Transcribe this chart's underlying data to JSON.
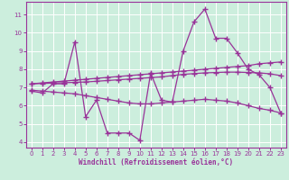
{
  "xlabel": "Windchill (Refroidissement éolien,°C)",
  "background_color": "#cceedd",
  "line_color": "#993399",
  "xlim": [
    -0.5,
    23.5
  ],
  "ylim": [
    3.7,
    11.7
  ],
  "yticks": [
    4,
    5,
    6,
    7,
    8,
    9,
    10,
    11
  ],
  "xticks": [
    0,
    1,
    2,
    3,
    4,
    5,
    6,
    7,
    8,
    9,
    10,
    11,
    12,
    13,
    14,
    15,
    16,
    17,
    18,
    19,
    20,
    21,
    22,
    23
  ],
  "x": [
    0,
    1,
    2,
    3,
    4,
    5,
    6,
    7,
    8,
    9,
    10,
    11,
    12,
    13,
    14,
    15,
    16,
    17,
    18,
    19,
    20,
    21,
    22,
    23
  ],
  "y_main": [
    6.8,
    6.7,
    7.2,
    7.2,
    9.5,
    5.4,
    6.3,
    4.5,
    4.5,
    4.5,
    4.1,
    7.8,
    6.3,
    6.2,
    9.0,
    10.6,
    11.3,
    9.7,
    9.7,
    8.9,
    8.0,
    7.7,
    7.0,
    5.6
  ],
  "y_line1": [
    7.2,
    7.25,
    7.3,
    7.35,
    7.4,
    7.45,
    7.5,
    7.55,
    7.6,
    7.65,
    7.7,
    7.75,
    7.8,
    7.85,
    7.9,
    7.95,
    8.0,
    8.05,
    8.1,
    8.15,
    8.2,
    8.3,
    8.35,
    8.4
  ],
  "y_line2": [
    7.2,
    7.22,
    7.24,
    7.26,
    7.28,
    7.3,
    7.34,
    7.38,
    7.42,
    7.46,
    7.5,
    7.54,
    7.58,
    7.65,
    7.72,
    7.76,
    7.8,
    7.82,
    7.84,
    7.84,
    7.82,
    7.8,
    7.75,
    7.65
  ],
  "y_line3": [
    6.85,
    6.8,
    6.75,
    6.7,
    6.65,
    6.55,
    6.45,
    6.35,
    6.25,
    6.15,
    6.1,
    6.1,
    6.15,
    6.2,
    6.25,
    6.3,
    6.35,
    6.3,
    6.25,
    6.15,
    6.0,
    5.85,
    5.75,
    5.6
  ]
}
